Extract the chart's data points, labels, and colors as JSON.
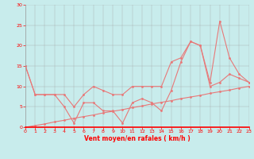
{
  "xlabel": "Vent moyen/en rafales ( km/h )",
  "background_color": "#c8ecec",
  "line_color": "#e87878",
  "x": [
    0,
    1,
    2,
    3,
    4,
    5,
    6,
    7,
    8,
    9,
    10,
    11,
    12,
    13,
    14,
    15,
    16,
    17,
    18,
    19,
    20,
    21,
    22,
    23
  ],
  "line_rafales": [
    15,
    8,
    8,
    8,
    8,
    5,
    8,
    10,
    9,
    8,
    8,
    10,
    10,
    10,
    10,
    16,
    17,
    21,
    20,
    11,
    26,
    17,
    13,
    11
  ],
  "line_moyen": [
    0,
    0.4,
    0.8,
    1.3,
    1.7,
    2.2,
    2.6,
    3.0,
    3.5,
    3.9,
    4.3,
    4.8,
    5.2,
    5.7,
    6.1,
    6.5,
    7.0,
    7.4,
    7.8,
    8.3,
    8.7,
    9.1,
    9.6,
    10.0
  ],
  "line_detail": [
    15,
    8,
    8,
    8,
    5,
    1,
    6,
    6,
    4,
    4,
    1,
    6,
    7,
    6,
    4,
    9,
    16,
    21,
    20,
    10,
    11,
    13,
    12,
    11
  ],
  "ylim": [
    0,
    30
  ],
  "xlim": [
    0,
    23
  ],
  "yticks": [
    0,
    5,
    10,
    15,
    20,
    25,
    30
  ],
  "xticks": [
    0,
    1,
    2,
    3,
    4,
    5,
    6,
    7,
    8,
    9,
    10,
    11,
    12,
    13,
    14,
    15,
    16,
    17,
    18,
    19,
    20,
    21,
    22,
    23
  ]
}
